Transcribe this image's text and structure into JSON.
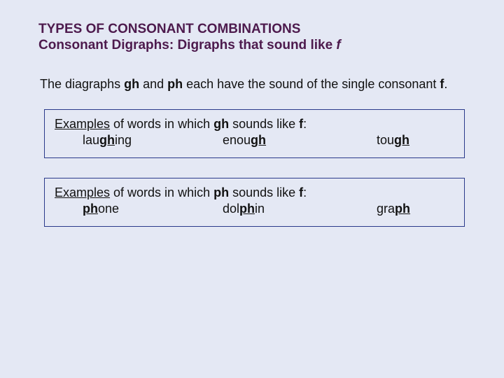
{
  "colors": {
    "background": "#e4e8f4",
    "title": "#4d1a4d",
    "body": "#111111",
    "box_border": "#2a3a8a"
  },
  "typography": {
    "title_fontsize": 19,
    "body_fontsize": 18,
    "font_family": "Verdana"
  },
  "title": "TYPES OF CONSONANT COMBINATIONS",
  "subtitle_plain": "Consonant Digraphs: Digraphs that sound like ",
  "subtitle_italic": "f",
  "intro": {
    "p1": "The diagraphs ",
    "gh": "gh",
    "p2": " and ",
    "ph": "ph",
    "p3": " each have the sound of the single consonant ",
    "f": "f",
    "p4": "."
  },
  "box1": {
    "lead_u": "Examples",
    "lead_rest": " of words in which ",
    "dig": "gh",
    "mid": " sounds like ",
    "f": "f",
    "colon": ":",
    "w1_pre": "lau",
    "w1_hi": "gh",
    "w1_post": "ing",
    "w2_pre": "enou",
    "w2_hi": "gh",
    "w2_post": "",
    "w3_pre": "tou",
    "w3_hi": "gh",
    "w3_post": ""
  },
  "box2": {
    "lead_u": "Examples",
    "lead_rest": " of words in which ",
    "dig": "ph",
    "mid": " sounds like ",
    "f": "f",
    "colon": ":",
    "w1_pre": "",
    "w1_hi": "ph",
    "w1_post": "one",
    "w2_pre": "dol",
    "w2_hi": "ph",
    "w2_post": "in",
    "w3_pre": "gra",
    "w3_hi": "ph",
    "w3_post": ""
  }
}
